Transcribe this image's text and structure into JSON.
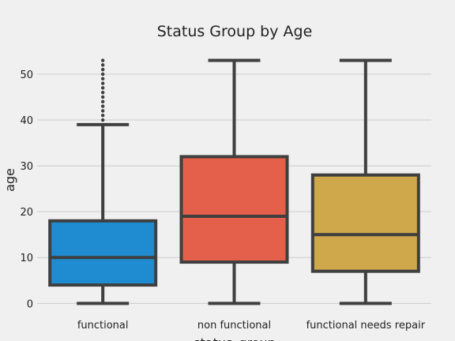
{
  "chart_data": {
    "type": "box",
    "title": "Status Group by Age",
    "xlabel": "status_group",
    "ylabel": "age",
    "ylim": [
      -2.7,
      55.5
    ],
    "yticks": [
      0,
      10,
      20,
      30,
      40,
      50
    ],
    "grid": "horizontal",
    "categories": [
      "functional",
      "non functional",
      "functional needs repair"
    ],
    "boxes": [
      {
        "category": "functional",
        "min": 0,
        "q1": 4,
        "median": 10,
        "q3": 18,
        "max": 39,
        "color": "#1f8bd0",
        "outliers": [
          40,
          41,
          42,
          43,
          44,
          45,
          46,
          47,
          48,
          49,
          50,
          51,
          52,
          53
        ]
      },
      {
        "category": "non functional",
        "min": 0,
        "q1": 9,
        "median": 19,
        "q3": 32,
        "max": 53,
        "color": "#e5604a",
        "outliers": []
      },
      {
        "category": "functional needs repair",
        "min": 0,
        "q1": 7,
        "median": 15,
        "q3": 28,
        "max": 53,
        "color": "#d0a84c",
        "outliers": []
      }
    ]
  }
}
